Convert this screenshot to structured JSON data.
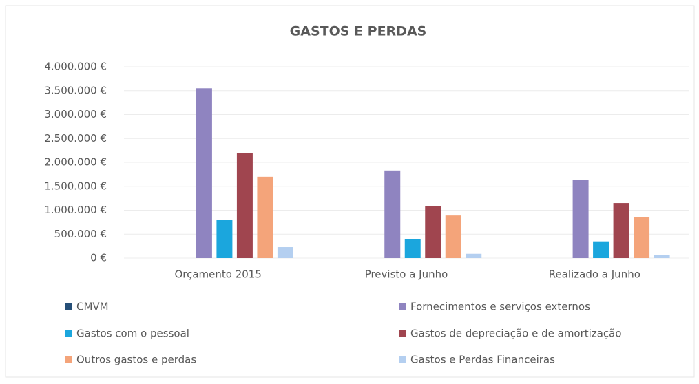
{
  "chart_data": {
    "type": "bar",
    "title": "GASTOS E PERDAS",
    "categories": [
      "Orçamento 2015",
      "Previsto a Junho",
      "Realizado a Junho"
    ],
    "series": [
      {
        "name": "CMVM",
        "color": "#264f78",
        "values": [
          0,
          0,
          0
        ]
      },
      {
        "name": "Fornecimentos e serviços externos",
        "color": "#8f84c0",
        "values": [
          3550000,
          1830000,
          1640000
        ]
      },
      {
        "name": "Gastos com o pessoal",
        "color": "#1ba6dd",
        "values": [
          800000,
          390000,
          350000
        ]
      },
      {
        "name": "Gastos de depreciação e de amortização",
        "color": "#a0454f",
        "values": [
          2190000,
          1080000,
          1150000
        ]
      },
      {
        "name": "Outros gastos e perdas",
        "color": "#f4a47a",
        "values": [
          1700000,
          890000,
          850000
        ]
      },
      {
        "name": "Gastos e Perdas Financeiras",
        "color": "#b4cff0",
        "values": [
          230000,
          90000,
          60000
        ]
      }
    ],
    "ylim": [
      0,
      4000000
    ],
    "yticks": [
      {
        "value": 0,
        "label": "0 €"
      },
      {
        "value": 500000,
        "label": "500.000 €"
      },
      {
        "value": 1000000,
        "label": "1.000.000 €"
      },
      {
        "value": 1500000,
        "label": "1.500.000 €"
      },
      {
        "value": 2000000,
        "label": "2.000.000 €"
      },
      {
        "value": 2500000,
        "label": "2.500.000 €"
      },
      {
        "value": 3000000,
        "label": "3.000.000 €"
      },
      {
        "value": 3500000,
        "label": "3.500.000 €"
      },
      {
        "value": 4000000,
        "label": "4.000.000 €"
      }
    ],
    "grid": true
  }
}
